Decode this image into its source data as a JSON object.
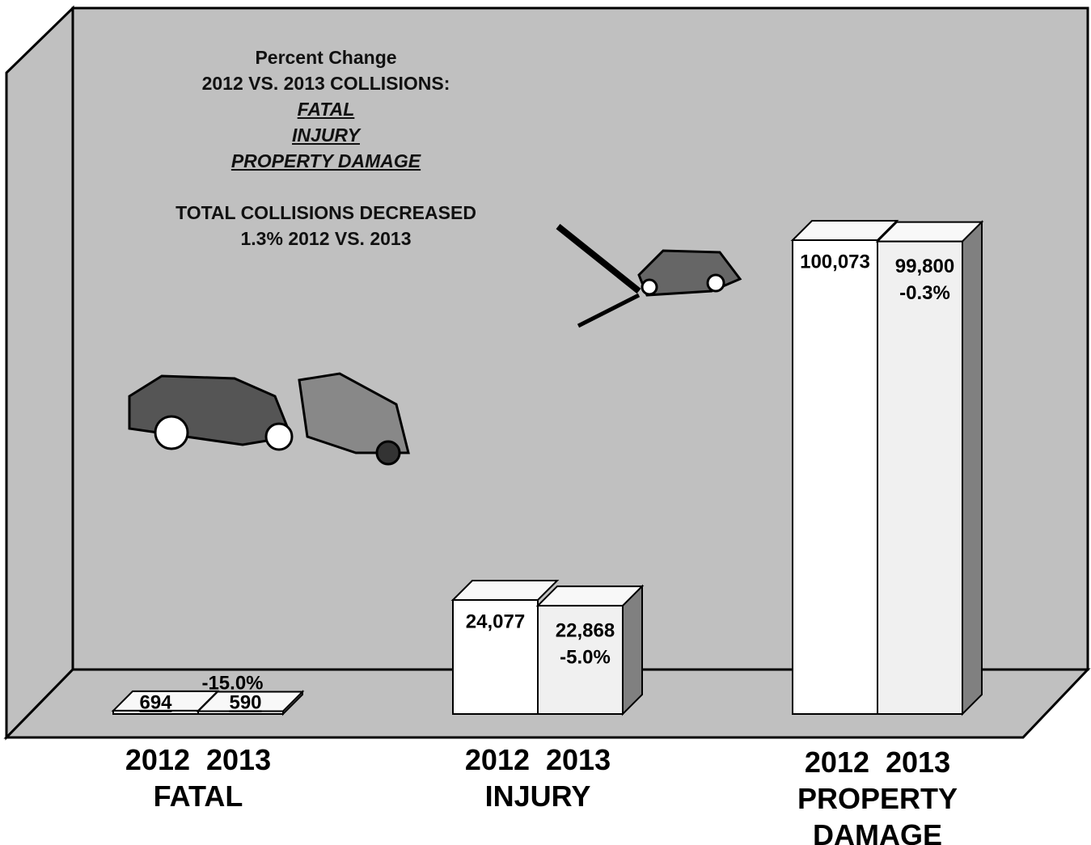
{
  "chart_data": {
    "type": "bar3d",
    "title_lines": [
      "Percent Change",
      "2012 VS. 2013 COLLISIONS:"
    ],
    "title_categories": [
      "FATAL",
      "INJURY",
      "PROPERTY DAMAGE"
    ],
    "note_lines": [
      "TOTAL COLLISIONS DECREASED",
      "1.3% 2012 VS. 2013"
    ],
    "categories": [
      "FATAL",
      "INJURY",
      "PROPERTY DAMAGE"
    ],
    "series": [
      {
        "name": "2012",
        "color": "#ffffff",
        "values": [
          694,
          24077,
          100073
        ],
        "value_labels": [
          "694",
          "24,077",
          "100,073"
        ]
      },
      {
        "name": "2013",
        "color": "#f0f0f0",
        "values": [
          590,
          22868,
          99800
        ],
        "value_labels": [
          "590",
          "22,868",
          "99,800"
        ]
      }
    ],
    "percent_change_labels": [
      "-15.0%",
      "-5.0%",
      "-0.3%"
    ],
    "background": "#c0c0c0"
  }
}
